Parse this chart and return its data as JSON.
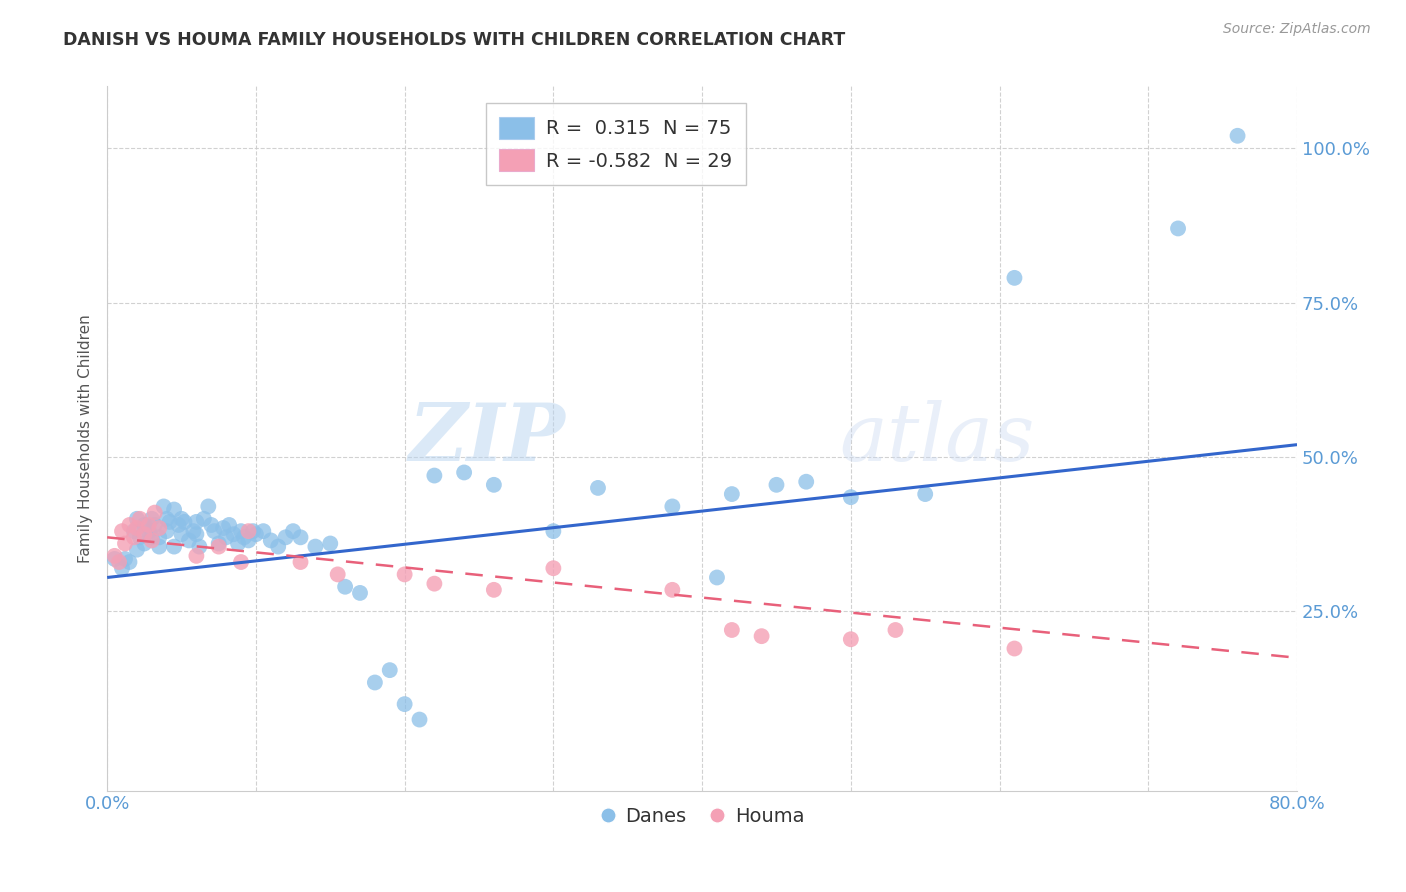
{
  "title": "DANISH VS HOUMA FAMILY HOUSEHOLDS WITH CHILDREN CORRELATION CHART",
  "source": "Source: ZipAtlas.com",
  "ylabel": "Family Households with Children",
  "xlim": [
    0.0,
    0.8
  ],
  "ylim": [
    -0.04,
    1.1
  ],
  "danes_R": 0.315,
  "danes_N": 75,
  "houma_R": -0.582,
  "houma_N": 29,
  "danes_color": "#8BBFE8",
  "houma_color": "#F4A0B5",
  "danes_line_color": "#3366CC",
  "houma_line_color": "#E8607A",
  "danes_x": [
    0.005,
    0.01,
    0.012,
    0.015,
    0.018,
    0.02,
    0.02,
    0.022,
    0.025,
    0.025,
    0.028,
    0.03,
    0.03,
    0.032,
    0.035,
    0.035,
    0.038,
    0.04,
    0.04,
    0.042,
    0.045,
    0.045,
    0.048,
    0.05,
    0.05,
    0.052,
    0.055,
    0.058,
    0.06,
    0.06,
    0.062,
    0.065,
    0.068,
    0.07,
    0.072,
    0.075,
    0.078,
    0.08,
    0.082,
    0.085,
    0.088,
    0.09,
    0.092,
    0.095,
    0.098,
    0.1,
    0.105,
    0.11,
    0.115,
    0.12,
    0.125,
    0.13,
    0.14,
    0.15,
    0.16,
    0.17,
    0.18,
    0.19,
    0.2,
    0.21,
    0.22,
    0.24,
    0.26,
    0.3,
    0.33,
    0.38,
    0.41,
    0.42,
    0.45,
    0.47,
    0.5,
    0.55,
    0.61,
    0.72,
    0.76
  ],
  "danes_y": [
    0.335,
    0.32,
    0.335,
    0.33,
    0.38,
    0.35,
    0.4,
    0.37,
    0.36,
    0.39,
    0.38,
    0.4,
    0.37,
    0.39,
    0.355,
    0.37,
    0.42,
    0.38,
    0.4,
    0.395,
    0.355,
    0.415,
    0.39,
    0.375,
    0.4,
    0.395,
    0.365,
    0.38,
    0.375,
    0.395,
    0.355,
    0.4,
    0.42,
    0.39,
    0.38,
    0.36,
    0.385,
    0.37,
    0.39,
    0.375,
    0.36,
    0.38,
    0.37,
    0.365,
    0.38,
    0.375,
    0.38,
    0.365,
    0.355,
    0.37,
    0.38,
    0.37,
    0.355,
    0.36,
    0.29,
    0.28,
    0.135,
    0.155,
    0.1,
    0.075,
    0.47,
    0.475,
    0.455,
    0.38,
    0.45,
    0.42,
    0.305,
    0.44,
    0.455,
    0.46,
    0.435,
    0.44,
    0.79,
    0.87,
    1.02
  ],
  "houma_x": [
    0.005,
    0.008,
    0.01,
    0.012,
    0.015,
    0.018,
    0.02,
    0.022,
    0.025,
    0.028,
    0.03,
    0.032,
    0.035,
    0.06,
    0.075,
    0.09,
    0.095,
    0.13,
    0.155,
    0.2,
    0.22,
    0.26,
    0.3,
    0.38,
    0.42,
    0.44,
    0.5,
    0.53,
    0.61
  ],
  "houma_y": [
    0.34,
    0.33,
    0.38,
    0.36,
    0.39,
    0.37,
    0.385,
    0.4,
    0.375,
    0.39,
    0.365,
    0.41,
    0.385,
    0.34,
    0.355,
    0.33,
    0.38,
    0.33,
    0.31,
    0.31,
    0.295,
    0.285,
    0.32,
    0.285,
    0.22,
    0.21,
    0.205,
    0.22,
    0.19
  ],
  "danes_line_x0": 0.0,
  "danes_line_x1": 0.8,
  "danes_line_y0": 0.305,
  "danes_line_y1": 0.52,
  "houma_line_x0": 0.0,
  "houma_line_x1": 0.8,
  "houma_line_y0": 0.37,
  "houma_line_y1": 0.175,
  "watermark_zip": "ZIP",
  "watermark_atlas": "atlas",
  "background_color": "#FFFFFF",
  "grid_color": "#CCCCCC",
  "tick_color": "#5B9BD5",
  "yticks": [
    0.25,
    0.5,
    0.75,
    1.0
  ],
  "ytick_labels": [
    "25.0%",
    "50.0%",
    "75.0%",
    "100.0%"
  ],
  "xtick_positions": [
    0.0,
    0.1,
    0.2,
    0.3,
    0.4,
    0.5,
    0.6,
    0.7,
    0.8
  ],
  "xtick_labels": [
    "0.0%",
    "",
    "",
    "",
    "",
    "",
    "",
    "",
    "80.0%"
  ]
}
